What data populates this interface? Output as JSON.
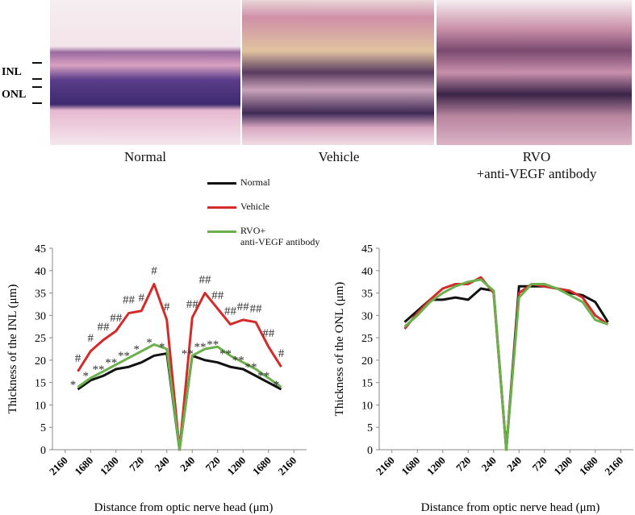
{
  "image_panels": {
    "labels": [
      "Normal",
      "Vehicle",
      "RVO\n+anti-VEGF antibody"
    ],
    "layer_labels": [
      "INL",
      "ONL"
    ]
  },
  "chart_data": [
    {
      "type": "line",
      "ylabel": "Thickness of the INL (μm)",
      "xlabel": "Distance from optic nerve head (μm)",
      "x": [
        -1920,
        -1680,
        -1440,
        -1200,
        -960,
        -720,
        -480,
        -240,
        0,
        240,
        480,
        720,
        960,
        1200,
        1440,
        1680,
        1920
      ],
      "xlim": [
        -2400,
        2400
      ],
      "xticks": [
        {
          "value": -2160,
          "label": "2160"
        },
        {
          "value": -1680,
          "label": "1680"
        },
        {
          "value": -1200,
          "label": "1200"
        },
        {
          "value": -720,
          "label": "720"
        },
        {
          "value": -240,
          "label": "240"
        },
        240,
        720,
        1200,
        1680,
        2160
      ],
      "ylim": [
        0,
        45
      ],
      "yticks": [
        0,
        5,
        10,
        15,
        20,
        25,
        30,
        35,
        40,
        45
      ],
      "series": [
        {
          "name": "Normal",
          "color": "#111111",
          "values": [
            13.5,
            15.5,
            16.5,
            18,
            18.5,
            19.5,
            21,
            21.5,
            0,
            21,
            20,
            19.5,
            18.5,
            18,
            16.5,
            15,
            13.5
          ]
        },
        {
          "name": "Vehicle",
          "color": "#d42a2a",
          "values": [
            17.5,
            22,
            24.5,
            26.5,
            30.5,
            31,
            37,
            29,
            0,
            29.5,
            35,
            31.5,
            28,
            29,
            28.5,
            23,
            18.5
          ],
          "annotations": [
            "#",
            "#",
            "##",
            "##",
            "##",
            "#",
            "#",
            "#",
            null,
            "##",
            "##",
            "##",
            "##",
            "##",
            "##",
            "##",
            "#"
          ]
        },
        {
          "name": "RVO+\nanti-VEGF antibody",
          "color": "#6ab04c",
          "values": [
            14,
            16,
            17.5,
            19,
            20.5,
            22,
            23.5,
            22.5,
            0,
            21,
            22.5,
            23,
            21,
            19.5,
            18,
            16,
            14
          ],
          "annotations": [
            "*",
            "*",
            "**",
            "**",
            "**",
            "*",
            "*",
            "*",
            null,
            "**",
            "**",
            "**",
            "**",
            "**",
            "**",
            "**",
            "*"
          ]
        }
      ]
    },
    {
      "type": "line",
      "ylabel": "Thickness of the ONL (μm)",
      "xlabel": "Distance from optic nerve head (μm)",
      "x": [
        -1920,
        -1680,
        -1440,
        -1200,
        -960,
        -720,
        -480,
        -240,
        0,
        240,
        480,
        720,
        960,
        1200,
        1440,
        1680,
        1920
      ],
      "xlim": [
        -2400,
        2400
      ],
      "xticks": [
        {
          "value": -2160,
          "label": "2160"
        },
        {
          "value": -1680,
          "label": "1680"
        },
        {
          "value": -1200,
          "label": "1200"
        },
        {
          "value": -720,
          "label": "720"
        },
        {
          "value": -240,
          "label": "240"
        },
        240,
        720,
        1200,
        1680,
        2160
      ],
      "ylim": [
        0,
        45
      ],
      "yticks": [
        0,
        5,
        10,
        15,
        20,
        25,
        30,
        35,
        40,
        45
      ],
      "series": [
        {
          "color": "#111111",
          "values": [
            28.5,
            31,
            33.5,
            33.5,
            34,
            33.5,
            36,
            35.5,
            0,
            36.5,
            36.5,
            36.5,
            36,
            35,
            34.5,
            33,
            28.5
          ]
        },
        {
          "color": "#d42a2a",
          "values": [
            27,
            30.5,
            33.5,
            36,
            37,
            37,
            38.5,
            35,
            0,
            35,
            37,
            36.5,
            36,
            35.5,
            34,
            30,
            28
          ]
        },
        {
          "color": "#6ab04c",
          "values": [
            27.5,
            30,
            33,
            35,
            36.5,
            37.5,
            38,
            35.5,
            0,
            34,
            37,
            37,
            36,
            34.5,
            33,
            29,
            28
          ]
        }
      ]
    }
  ]
}
